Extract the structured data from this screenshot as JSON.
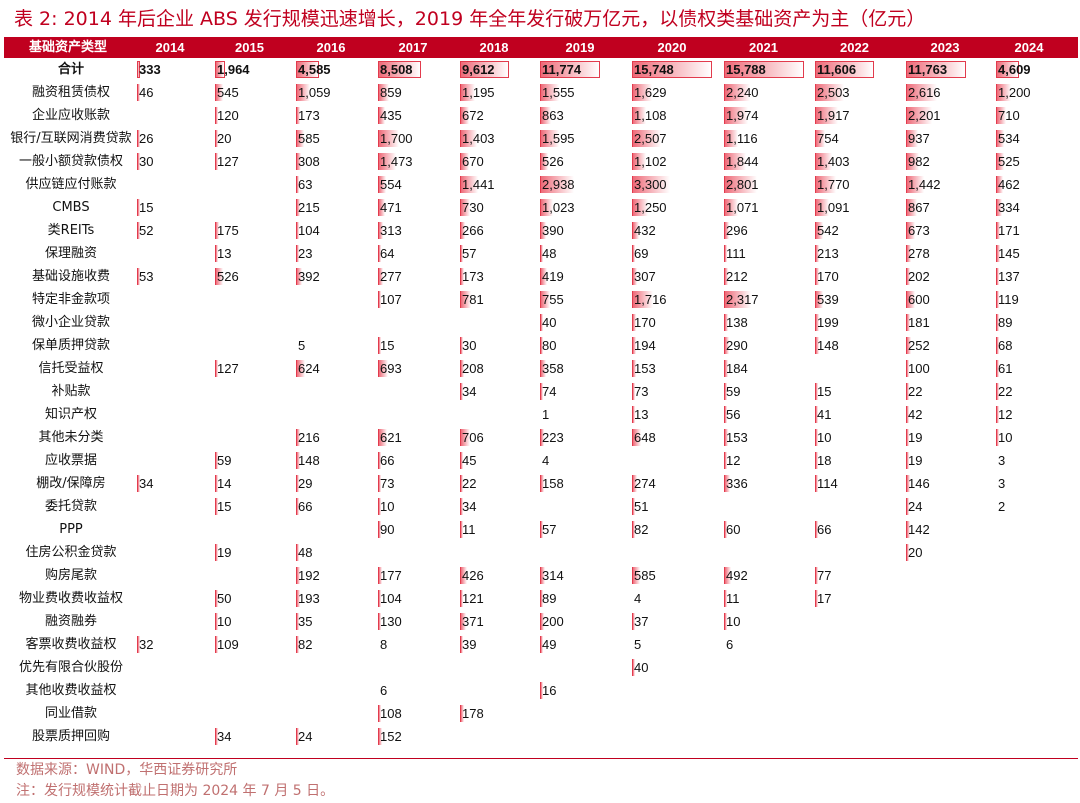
{
  "title": "表 2: 2014 年后企业 ABS 发行规模迅速增长，2019 年全年发行破万亿元，以债权类基础资产为主（亿元）",
  "header_label": "基础资产类型",
  "years": [
    "2014",
    "2015",
    "2016",
    "2017",
    "2018",
    "2019",
    "2020",
    "2021",
    "2022",
    "2023",
    "2024"
  ],
  "colors": {
    "accent": "#c0001f",
    "bar_start": "#ffffff",
    "bar_end": "#ee6a78",
    "border": "#e23b4d"
  },
  "rows": [
    {
      "label": "合计",
      "values": [
        "333",
        "1,964",
        "4,585",
        "8,508",
        "9,612",
        "11,774",
        "15,748",
        "15,788",
        "11,606",
        "11,763",
        "4,609"
      ],
      "total": true
    },
    {
      "label": "融资租赁债权",
      "values": [
        "46",
        "545",
        "1,059",
        "859",
        "1,195",
        "1,555",
        "1,629",
        "2,240",
        "2,503",
        "2,616",
        "1,200"
      ]
    },
    {
      "label": "企业应收账款",
      "values": [
        "",
        "120",
        "173",
        "435",
        "672",
        "863",
        "1,108",
        "1,974",
        "1,917",
        "2,201",
        "710"
      ]
    },
    {
      "label": "银行/互联网消费贷款",
      "values": [
        "26",
        "20",
        "585",
        "1,700",
        "1,403",
        "1,595",
        "2,507",
        "1,116",
        "754",
        "937",
        "534"
      ]
    },
    {
      "label": "一般小额贷款债权",
      "values": [
        "30",
        "127",
        "308",
        "1,473",
        "670",
        "526",
        "1,102",
        "1,844",
        "1,403",
        "982",
        "525"
      ]
    },
    {
      "label": "供应链应付账款",
      "values": [
        "",
        "",
        "63",
        "554",
        "1,441",
        "2,938",
        "3,300",
        "2,801",
        "1,770",
        "1,442",
        "462"
      ]
    },
    {
      "label": "CMBS",
      "values": [
        "15",
        "",
        "215",
        "471",
        "730",
        "1,023",
        "1,250",
        "1,071",
        "1,091",
        "867",
        "334"
      ]
    },
    {
      "label": "类REITs",
      "values": [
        "52",
        "175",
        "104",
        "313",
        "266",
        "390",
        "432",
        "296",
        "542",
        "673",
        "171"
      ]
    },
    {
      "label": "保理融资",
      "values": [
        "",
        "13",
        "23",
        "64",
        "57",
        "48",
        "69",
        "111",
        "213",
        "278",
        "145"
      ]
    },
    {
      "label": "基础设施收费",
      "values": [
        "53",
        "526",
        "392",
        "277",
        "173",
        "419",
        "307",
        "212",
        "170",
        "202",
        "137"
      ]
    },
    {
      "label": "特定非金款项",
      "values": [
        "",
        "",
        "",
        "107",
        "781",
        "755",
        "1,716",
        "2,317",
        "539",
        "600",
        "119"
      ]
    },
    {
      "label": "微小企业贷款",
      "values": [
        "",
        "",
        "",
        "",
        "",
        "40",
        "170",
        "138",
        "199",
        "181",
        "89"
      ]
    },
    {
      "label": "保单质押贷款",
      "values": [
        "",
        "",
        "5",
        "15",
        "30",
        "80",
        "194",
        "290",
        "148",
        "252",
        "68"
      ]
    },
    {
      "label": "信托受益权",
      "values": [
        "",
        "127",
        "624",
        "693",
        "208",
        "358",
        "153",
        "184",
        "",
        "100",
        "61"
      ]
    },
    {
      "label": "补贴款",
      "values": [
        "",
        "",
        "",
        "",
        "34",
        "74",
        "73",
        "59",
        "15",
        "22",
        "22"
      ]
    },
    {
      "label": "知识产权",
      "values": [
        "",
        "",
        "",
        "",
        "",
        "1",
        "13",
        "56",
        "41",
        "42",
        "12"
      ]
    },
    {
      "label": "其他未分类",
      "values": [
        "",
        "",
        "216",
        "621",
        "706",
        "223",
        "648",
        "153",
        "10",
        "19",
        "10"
      ]
    },
    {
      "label": "应收票据",
      "values": [
        "",
        "59",
        "148",
        "66",
        "45",
        "4",
        "",
        "12",
        "18",
        "19",
        "3"
      ]
    },
    {
      "label": "棚改/保障房",
      "values": [
        "34",
        "14",
        "29",
        "73",
        "22",
        "158",
        "274",
        "336",
        "114",
        "146",
        "3"
      ]
    },
    {
      "label": "委托贷款",
      "values": [
        "",
        "15",
        "66",
        "10",
        "34",
        "",
        "51",
        "",
        "",
        "24",
        "2"
      ]
    },
    {
      "label": "PPP",
      "values": [
        "",
        "",
        "",
        "90",
        "11",
        "57",
        "82",
        "60",
        "66",
        "142",
        ""
      ]
    },
    {
      "label": "住房公积金贷款",
      "values": [
        "",
        "19",
        "48",
        "",
        "",
        "",
        "",
        "",
        "",
        "20",
        ""
      ]
    },
    {
      "label": "购房尾款",
      "values": [
        "",
        "",
        "192",
        "177",
        "426",
        "314",
        "585",
        "492",
        "77",
        "",
        ""
      ]
    },
    {
      "label": "物业费收费收益权",
      "values": [
        "",
        "50",
        "193",
        "104",
        "121",
        "89",
        "4",
        "11",
        "17",
        "",
        ""
      ]
    },
    {
      "label": "融资融券",
      "values": [
        "",
        "10",
        "35",
        "130",
        "371",
        "200",
        "37",
        "10",
        "",
        "",
        ""
      ]
    },
    {
      "label": "客票收费收益权",
      "values": [
        "32",
        "109",
        "82",
        "8",
        "39",
        "49",
        "5",
        "6",
        "",
        "",
        ""
      ]
    },
    {
      "label": "优先有限合伙股份",
      "values": [
        "",
        "",
        "",
        "",
        "",
        "",
        "40",
        "",
        "",
        "",
        ""
      ]
    },
    {
      "label": "其他收费收益权",
      "values": [
        "",
        "",
        "",
        "6",
        "",
        "16",
        "",
        "",
        "",
        "",
        ""
      ]
    },
    {
      "label": "同业借款",
      "values": [
        "",
        "",
        "",
        "108",
        "178",
        "",
        "",
        "",
        "",
        "",
        ""
      ]
    },
    {
      "label": "股票质押回购",
      "values": [
        "",
        "34",
        "24",
        "152",
        "",
        "",
        "",
        "",
        "",
        "",
        ""
      ]
    }
  ],
  "source": "数据来源：WIND，华西证券研究所",
  "note": "注：发行规模统计截止日期为 2024 年 7 月 5 日。"
}
